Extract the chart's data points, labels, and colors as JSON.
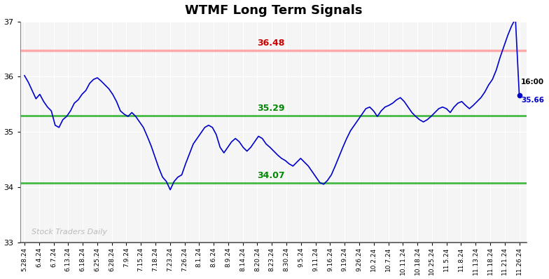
{
  "title": "WTMF Long Term Signals",
  "ylim": [
    33,
    37
  ],
  "yticks": [
    33,
    34,
    35,
    36,
    37
  ],
  "red_line": 36.48,
  "green_line_upper": 35.29,
  "green_line_lower": 34.07,
  "watermark": "Stock Traders Daily",
  "line_color": "#0000cc",
  "red_line_color": "#ffaaaa",
  "green_line_color": "#44bb44",
  "x_labels": [
    "5.28.24",
    "6.4.24",
    "6.7.24",
    "6.13.24",
    "6.18.24",
    "6.25.24",
    "6.28.24",
    "7.9.24",
    "7.15.24",
    "7.18.24",
    "7.23.24",
    "7.26.24",
    "8.1.24",
    "8.6.24",
    "8.9.24",
    "8.14.24",
    "8.20.24",
    "8.23.24",
    "8.30.24",
    "9.5.24",
    "9.11.24",
    "9.16.24",
    "9.19.24",
    "9.26.24",
    "10.2.24",
    "10.7.24",
    "10.11.24",
    "10.18.24",
    "10.25.24",
    "11.5.24",
    "11.8.24",
    "11.13.24",
    "11.18.24",
    "11.21.24",
    "11.26.24"
  ],
  "prices": [
    36.02,
    35.9,
    35.75,
    35.6,
    35.68,
    35.55,
    35.45,
    35.38,
    35.12,
    35.08,
    35.22,
    35.28,
    35.38,
    35.52,
    35.58,
    35.68,
    35.75,
    35.88,
    35.95,
    35.98,
    35.92,
    35.85,
    35.78,
    35.68,
    35.55,
    35.38,
    35.32,
    35.28,
    35.35,
    35.28,
    35.18,
    35.08,
    34.92,
    34.75,
    34.55,
    34.35,
    34.18,
    34.1,
    33.95,
    34.1,
    34.18,
    34.22,
    34.42,
    34.6,
    34.78,
    34.88,
    34.98,
    35.08,
    35.12,
    35.08,
    34.95,
    34.72,
    34.62,
    34.72,
    34.82,
    34.88,
    34.82,
    34.72,
    34.65,
    34.72,
    34.82,
    34.92,
    34.88,
    34.78,
    34.72,
    34.65,
    34.58,
    34.52,
    34.48,
    34.42,
    34.38,
    34.45,
    34.52,
    34.45,
    34.38,
    34.28,
    34.18,
    34.08,
    34.05,
    34.12,
    34.22,
    34.38,
    34.55,
    34.72,
    34.88,
    35.02,
    35.12,
    35.22,
    35.32,
    35.42,
    35.45,
    35.38,
    35.28,
    35.38,
    35.45,
    35.48,
    35.52,
    35.58,
    35.62,
    35.55,
    35.45,
    35.35,
    35.28,
    35.22,
    35.18,
    35.22,
    35.28,
    35.35,
    35.42,
    35.45,
    35.42,
    35.35,
    35.45,
    35.52,
    35.55,
    35.48,
    35.42,
    35.48,
    35.55,
    35.62,
    35.72,
    35.85,
    35.95,
    36.12,
    36.35,
    36.55,
    36.75,
    36.92,
    37.05,
    35.66
  ]
}
